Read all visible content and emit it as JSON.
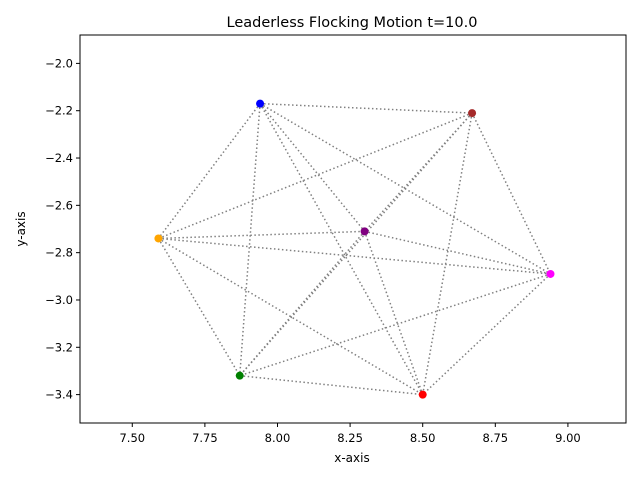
{
  "chart_data": {
    "type": "scatter",
    "title": "Leaderless Flocking Motion t=10.0",
    "xlabel": "x-axis",
    "ylabel": "y-axis",
    "xlim": [
      7.32,
      9.2
    ],
    "ylim": [
      -3.52,
      -1.88
    ],
    "xticks": [
      "7.50",
      "7.75",
      "8.00",
      "8.25",
      "8.50",
      "8.75",
      "9.00"
    ],
    "yticks": [
      "−2.0",
      "−2.2",
      "−2.4",
      "−2.6",
      "−2.8",
      "−3.0",
      "−3.2",
      "−3.4"
    ],
    "grid": false,
    "legend": "none",
    "edge_color": "#808080",
    "edge_style": "dotted",
    "points": [
      {
        "x": 7.94,
        "y": -2.17,
        "color": "#0000ff"
      },
      {
        "x": 8.67,
        "y": -2.21,
        "color": "#a52a2a"
      },
      {
        "x": 7.59,
        "y": -2.74,
        "color": "#ffa500"
      },
      {
        "x": 8.3,
        "y": -2.71,
        "color": "#800080"
      },
      {
        "x": 8.94,
        "y": -2.89,
        "color": "#ff00ff"
      },
      {
        "x": 7.87,
        "y": -3.32,
        "color": "#008000"
      },
      {
        "x": 8.5,
        "y": -3.4,
        "color": "#ff0000"
      }
    ],
    "edges": [
      [
        0,
        1
      ],
      [
        0,
        2
      ],
      [
        0,
        3
      ],
      [
        0,
        4
      ],
      [
        0,
        5
      ],
      [
        0,
        6
      ],
      [
        1,
        2
      ],
      [
        1,
        3
      ],
      [
        1,
        4
      ],
      [
        1,
        5
      ],
      [
        1,
        6
      ],
      [
        2,
        3
      ],
      [
        2,
        4
      ],
      [
        2,
        5
      ],
      [
        2,
        6
      ],
      [
        3,
        4
      ],
      [
        3,
        5
      ],
      [
        3,
        6
      ],
      [
        4,
        5
      ],
      [
        4,
        6
      ],
      [
        5,
        6
      ]
    ]
  }
}
